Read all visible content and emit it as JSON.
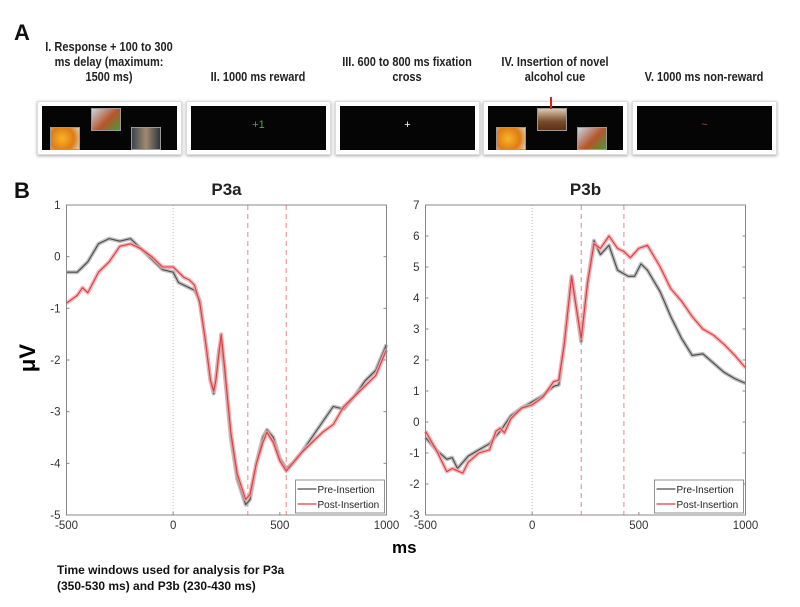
{
  "panel_a": {
    "letter": "A",
    "stimuli": [
      {
        "title": "I. Response + 100 to 300 ms delay (maximum: 1500 ms)",
        "content": "three food/drink images"
      },
      {
        "title": "II. 1000 ms reward",
        "symbol": "+1",
        "symbol_color": "#3fae4a"
      },
      {
        "title": "III. 600 to 800 ms fixation cross",
        "symbol": "+",
        "symbol_color": "#ffffff"
      },
      {
        "title": "IV. Insertion of novel alcohol cue",
        "content": "novel alcohol cue marked with red arrow"
      },
      {
        "title": "V. 1000 ms non-reward",
        "symbol": "~",
        "symbol_color": "#c0392b"
      }
    ]
  },
  "panel_b": {
    "letter": "B",
    "ylabel": "μV",
    "xlabel": "ms"
  },
  "caption": {
    "line1": "Time windows used for analysis for P3a",
    "line2": "(350-530 ms) and P3b (230-430 ms)"
  },
  "colors": {
    "pre": "#4a4a4a",
    "post": "#e0393e",
    "pre_band": "#b0b0b0",
    "post_band": "#f2a5a7",
    "window": "#e8868a"
  },
  "chart_data": [
    {
      "type": "line",
      "title": "P3a",
      "xlim": [
        -500,
        1000
      ],
      "ylim": [
        -5,
        1
      ],
      "xticks": [
        -500,
        0,
        500,
        1000
      ],
      "yticks": [
        -5,
        -4,
        -3,
        -2,
        -1,
        0,
        1
      ],
      "legend": {
        "position": "bottom-right",
        "entries": [
          "Pre-Insertion",
          "Post-Insertion"
        ]
      },
      "window_ms": [
        350,
        530
      ],
      "series": [
        {
          "name": "Pre-Insertion",
          "x": [
            -500,
            -450,
            -400,
            -350,
            -300,
            -250,
            -200,
            -150,
            -100,
            -50,
            0,
            25,
            50,
            100,
            125,
            150,
            175,
            190,
            200,
            215,
            225,
            240,
            270,
            300,
            340,
            360,
            390,
            420,
            440,
            470,
            500,
            530,
            560,
            600,
            650,
            700,
            750,
            800,
            850,
            900,
            950,
            1000
          ],
          "y": [
            -0.3,
            -0.3,
            -0.1,
            0.25,
            0.35,
            0.3,
            0.35,
            0.15,
            -0.05,
            -0.25,
            -0.3,
            -0.5,
            -0.55,
            -0.65,
            -0.85,
            -1.6,
            -2.4,
            -2.65,
            -2.4,
            -1.8,
            -1.65,
            -2.2,
            -3.5,
            -4.3,
            -4.8,
            -4.7,
            -4.0,
            -3.5,
            -3.35,
            -3.5,
            -3.9,
            -4.1,
            -4.0,
            -3.8,
            -3.5,
            -3.2,
            -2.9,
            -2.95,
            -2.7,
            -2.4,
            -2.2,
            -1.7
          ]
        },
        {
          "name": "Post-Insertion",
          "x": [
            -500,
            -450,
            -425,
            -400,
            -350,
            -300,
            -250,
            -200,
            -150,
            -100,
            -50,
            0,
            25,
            50,
            75,
            100,
            125,
            150,
            175,
            190,
            200,
            225,
            240,
            270,
            300,
            340,
            360,
            390,
            420,
            440,
            470,
            500,
            530,
            560,
            600,
            650,
            700,
            750,
            800,
            850,
            900,
            950,
            1000
          ],
          "y": [
            -0.9,
            -0.75,
            -0.6,
            -0.7,
            -0.3,
            -0.1,
            0.2,
            0.25,
            0.15,
            0.0,
            -0.2,
            -0.2,
            -0.3,
            -0.4,
            -0.45,
            -0.55,
            -0.9,
            -1.6,
            -2.4,
            -2.6,
            -2.4,
            -1.5,
            -2.1,
            -3.4,
            -4.2,
            -4.7,
            -4.6,
            -4.0,
            -3.6,
            -3.4,
            -3.6,
            -3.95,
            -4.15,
            -4.0,
            -3.8,
            -3.6,
            -3.4,
            -3.25,
            -2.9,
            -2.7,
            -2.5,
            -2.3,
            -1.8
          ]
        }
      ]
    },
    {
      "type": "line",
      "title": "P3b",
      "xlim": [
        -500,
        1000
      ],
      "ylim": [
        -3,
        7
      ],
      "xticks": [
        -500,
        0,
        500,
        1000
      ],
      "yticks": [
        -3,
        -2,
        -1,
        0,
        1,
        2,
        3,
        4,
        5,
        6,
        7
      ],
      "legend": {
        "position": "bottom-right",
        "entries": [
          "Pre-Insertion",
          "Post-Insertion"
        ]
      },
      "window_ms": [
        230,
        430
      ],
      "series": [
        {
          "name": "Pre-Insertion",
          "x": [
            -500,
            -450,
            -400,
            -375,
            -350,
            -300,
            -250,
            -200,
            -150,
            -100,
            -50,
            0,
            50,
            100,
            125,
            150,
            185,
            200,
            230,
            260,
            290,
            320,
            360,
            400,
            450,
            480,
            510,
            540,
            600,
            650,
            700,
            750,
            800,
            850,
            900,
            950,
            1000
          ],
          "y": [
            -0.5,
            -0.9,
            -1.2,
            -1.15,
            -1.5,
            -1.1,
            -0.9,
            -0.7,
            -0.3,
            0.2,
            0.45,
            0.65,
            0.85,
            1.15,
            1.2,
            2.5,
            4.7,
            4.0,
            2.6,
            4.5,
            5.85,
            5.4,
            5.7,
            4.9,
            4.7,
            4.7,
            5.1,
            4.9,
            4.2,
            3.4,
            2.7,
            2.15,
            2.2,
            1.9,
            1.6,
            1.4,
            1.25
          ]
        },
        {
          "name": "Post-Insertion",
          "x": [
            -500,
            -450,
            -400,
            -375,
            -325,
            -300,
            -250,
            -200,
            -170,
            -150,
            -130,
            -100,
            -50,
            0,
            50,
            100,
            125,
            150,
            185,
            200,
            230,
            260,
            290,
            320,
            360,
            400,
            430,
            460,
            500,
            540,
            600,
            650,
            700,
            750,
            800,
            850,
            900,
            950,
            1000
          ],
          "y": [
            -0.3,
            -0.9,
            -1.6,
            -1.5,
            -1.65,
            -1.3,
            -1.0,
            -0.9,
            -0.3,
            -0.2,
            -0.35,
            0.1,
            0.45,
            0.55,
            0.8,
            1.3,
            1.35,
            2.5,
            4.7,
            4.0,
            2.7,
            4.5,
            5.75,
            5.6,
            6.0,
            5.6,
            5.5,
            5.3,
            5.6,
            5.7,
            5.0,
            4.3,
            3.9,
            3.4,
            3.0,
            2.8,
            2.5,
            2.15,
            1.75
          ]
        }
      ]
    }
  ]
}
